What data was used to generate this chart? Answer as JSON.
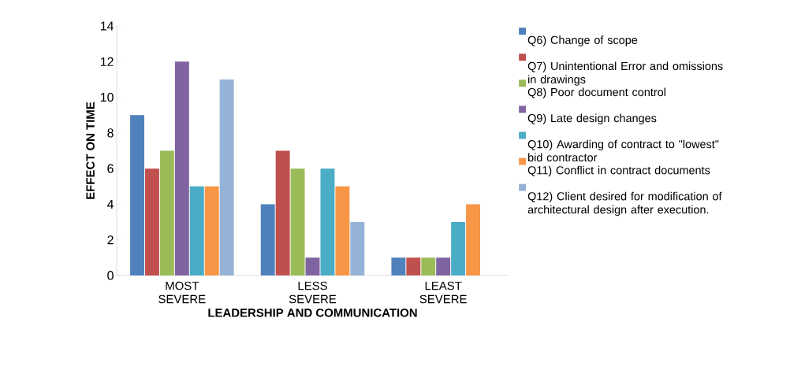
{
  "chart_data": {
    "type": "bar",
    "xlabel": "LEADERSHIP AND COMMUNICATION",
    "ylabel": "EFFECT ON TIME",
    "categories": [
      "MOST SEVERE",
      "LESS SEVERE",
      "LEAST SEVERE"
    ],
    "series": [
      {
        "name": "Q6) Change of scope",
        "color": "#4f81bd",
        "values": [
          9,
          4,
          1
        ]
      },
      {
        "name": "Q7) Unintentional Error and omissions in drawings",
        "color": "#c0504d",
        "values": [
          6,
          7,
          1
        ]
      },
      {
        "name": "Q8) Poor document control",
        "color": "#9bbb59",
        "values": [
          7,
          6,
          1
        ]
      },
      {
        "name": "Q9) Late design changes",
        "color": "#8064a2",
        "values": [
          12,
          1,
          1
        ]
      },
      {
        "name": "Q10) Awarding of contract to \"lowest\" bid contractor",
        "color": "#4bacc6",
        "values": [
          5,
          6,
          3
        ]
      },
      {
        "name": "Q11) Conflict in contract documents",
        "color": "#f79646",
        "values": [
          5,
          5,
          4
        ]
      },
      {
        "name": "Q12) Client desired for modification of architectural design after execution.",
        "color": "#95b3d7",
        "values": [
          11,
          3,
          0
        ]
      }
    ],
    "ylim": [
      0,
      14
    ],
    "yticks": [
      0,
      2,
      4,
      6,
      8,
      10,
      12,
      14
    ],
    "grid": false,
    "legend": "right"
  }
}
